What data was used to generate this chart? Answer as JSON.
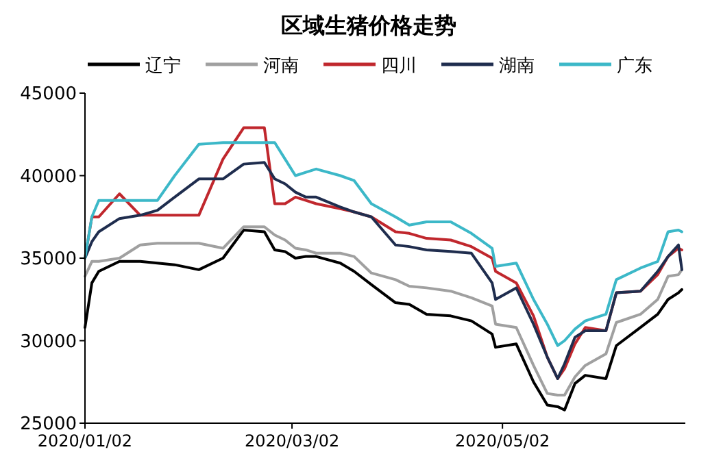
{
  "chart_data": {
    "type": "line",
    "title": "区域生猪价格走势",
    "x": [
      "2020-01-02",
      "2020-01-04",
      "2020-01-06",
      "2020-01-12",
      "2020-01-18",
      "2020-01-23",
      "2020-01-28",
      "2020-02-04",
      "2020-02-11",
      "2020-02-17",
      "2020-02-23",
      "2020-02-26",
      "2020-02-29",
      "2020-03-03",
      "2020-03-06",
      "2020-03-09",
      "2020-03-16",
      "2020-03-20",
      "2020-03-25",
      "2020-04-01",
      "2020-04-05",
      "2020-04-10",
      "2020-04-17",
      "2020-04-23",
      "2020-04-29",
      "2020-04-30",
      "2020-05-06",
      "2020-05-11",
      "2020-05-15",
      "2020-05-18",
      "2020-05-20",
      "2020-05-23",
      "2020-05-26",
      "2020-06-01",
      "2020-06-04",
      "2020-06-11",
      "2020-06-16",
      "2020-06-19",
      "2020-06-22",
      "2020-06-23"
    ],
    "series": [
      {
        "name": "辽宁",
        "color": "#000000",
        "values": [
          30800,
          33500,
          34200,
          34800,
          34800,
          34700,
          34600,
          34300,
          35000,
          36700,
          36600,
          35500,
          35400,
          35000,
          35100,
          35100,
          34700,
          34200,
          33400,
          32300,
          32200,
          31600,
          31500,
          31200,
          30400,
          29600,
          29800,
          27500,
          26100,
          26000,
          25800,
          27400,
          27900,
          27700,
          29700,
          30800,
          31600,
          32500,
          32900,
          33100
        ]
      },
      {
        "name": "河南",
        "color": "#a0a0a0",
        "values": [
          33900,
          34800,
          34800,
          35000,
          35800,
          35900,
          35900,
          35900,
          35600,
          36900,
          36900,
          36400,
          36100,
          35600,
          35500,
          35300,
          35300,
          35100,
          34100,
          33700,
          33300,
          33200,
          33000,
          32600,
          32100,
          31000,
          30800,
          28500,
          26800,
          26700,
          26700,
          27800,
          28500,
          29200,
          31100,
          31600,
          32500,
          33900,
          34000,
          34300
        ]
      },
      {
        "name": "四川",
        "color": "#c0272d",
        "values": [
          35000,
          37500,
          37500,
          38900,
          37600,
          37600,
          37600,
          37600,
          41000,
          42900,
          42900,
          38300,
          38300,
          38700,
          38500,
          38300,
          38000,
          37800,
          37500,
          36600,
          36500,
          36200,
          36100,
          35700,
          35000,
          34200,
          33500,
          31500,
          29000,
          27700,
          28300,
          29800,
          30800,
          30600,
          32900,
          33000,
          34000,
          35100,
          35600,
          35500
        ]
      },
      {
        "name": "湖南",
        "color": "#1f2d4e",
        "values": [
          35000,
          36000,
          36600,
          37400,
          37600,
          37900,
          38700,
          39800,
          39800,
          40700,
          40800,
          39800,
          39500,
          39000,
          38700,
          38700,
          38100,
          37800,
          37500,
          35800,
          35700,
          35500,
          35400,
          35300,
          33500,
          32500,
          33200,
          31000,
          29000,
          27700,
          28600,
          30200,
          30600,
          30600,
          32900,
          33000,
          34200,
          35100,
          35800,
          34300
        ]
      },
      {
        "name": "广东",
        "color": "#3cb8c8",
        "values": [
          35000,
          37500,
          38500,
          38500,
          38500,
          38500,
          40000,
          41900,
          42000,
          42000,
          42000,
          42000,
          41000,
          40000,
          40200,
          40400,
          40000,
          39700,
          38300,
          37500,
          37000,
          37200,
          37200,
          36500,
          35600,
          34500,
          34700,
          32500,
          31000,
          29700,
          30000,
          30700,
          31200,
          31600,
          33700,
          34400,
          34800,
          36600,
          36700,
          36600
        ]
      }
    ],
    "xlim": [
      "2020-01-02",
      "2020-06-24"
    ],
    "xticks": [
      {
        "value": "2020-01-02",
        "label": "2020/01/02"
      },
      {
        "value": "2020-03-02",
        "label": "2020/03/02"
      },
      {
        "value": "2020-05-02",
        "label": "2020/05/02"
      }
    ],
    "ylim": [
      25000,
      45000
    ],
    "yticks": [
      25000,
      30000,
      35000,
      40000,
      45000
    ],
    "legend": "top",
    "grid": false
  }
}
